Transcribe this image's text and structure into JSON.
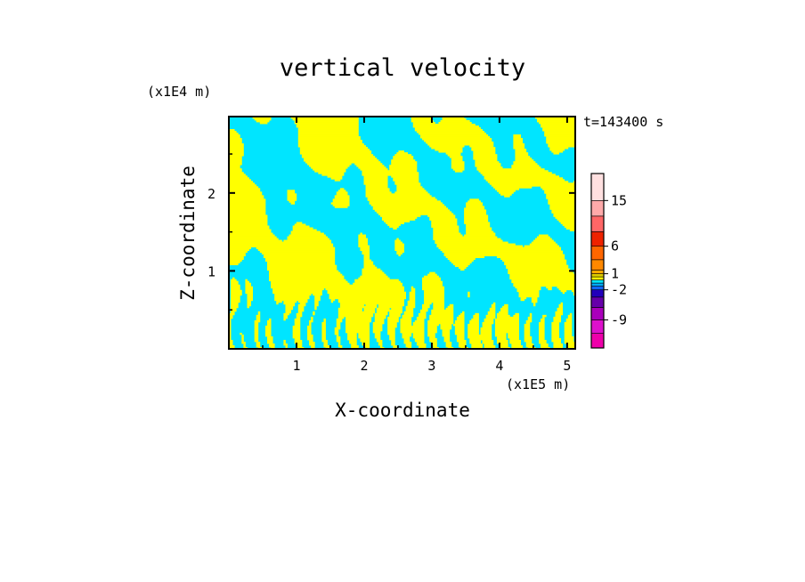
{
  "chart_data": {
    "type": "heatmap",
    "title": "vertical velocity",
    "xlabel": "X-coordinate",
    "ylabel": "Z-coordinate",
    "x_unit": "(x1E5 m)",
    "y_unit": "(x1E4 m)",
    "time_label": "t=143400 s",
    "xlim": [
      0,
      5.12
    ],
    "ylim": [
      0,
      2.98
    ],
    "x_ticks": [
      "1",
      "2",
      "3",
      "4",
      "5"
    ],
    "y_ticks": [
      "1",
      "2"
    ],
    "x_tick_values": [
      1,
      2,
      3,
      4,
      5
    ],
    "y_tick_values": [
      1,
      2
    ],
    "field": {
      "description_colors": {
        "positive": "#ffff00",
        "negative": "#00e5ff"
      }
    },
    "colorbar": {
      "levels": [
        {
          "range": "<-12",
          "color": "#ee00aa"
        },
        {
          "range": "-12 to -9",
          "color": "#dd11cc"
        },
        {
          "range": "-9 to -6",
          "color": "#aa00bb"
        },
        {
          "range": "-6 to -4",
          "color": "#6600aa"
        },
        {
          "range": "-4 to -2",
          "color": "#2200bb"
        },
        {
          "range": "-2 to -1",
          "color": "#1166ff"
        },
        {
          "range": "-1 to -0.5",
          "color": "#00aaff"
        },
        {
          "range": "-0.5 to 0",
          "color": "#00e5ff"
        },
        {
          "range": "0 to 0.5",
          "color": "#ffff00"
        },
        {
          "range": "0.5 to 1",
          "color": "#ddcc00"
        },
        {
          "range": "1 to 2",
          "color": "#ffaa00"
        },
        {
          "range": "2 to 4",
          "color": "#ff8800"
        },
        {
          "range": "4 to 6",
          "color": "#ff6600"
        },
        {
          "range": "6 to 9",
          "color": "#ee2200"
        },
        {
          "range": "9 to 12",
          "color": "#ff6666"
        },
        {
          "range": "12 to 15",
          "color": "#ffaaaa"
        },
        {
          "range": ">15",
          "color": "#ffe0e0"
        }
      ],
      "tick_labels": [
        "15",
        "6",
        "1",
        "-2",
        "-9"
      ],
      "tick_values": [
        15,
        6,
        1,
        -2,
        -9
      ]
    }
  }
}
